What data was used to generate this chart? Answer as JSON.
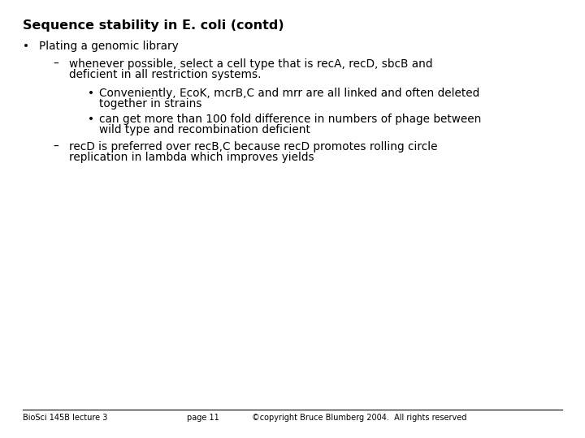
{
  "title": "Sequence stability in E. coli (contd)",
  "background_color": "#ffffff",
  "text_color": "#000000",
  "footer_left": "BioSci 145B lecture 3",
  "footer_center": "page 11",
  "footer_right": "©copyright Bruce Blumberg 2004.  All rights reserved",
  "bullet1": "Plating a genomic library",
  "sub1_line1": "whenever possible, select a cell type that is recA, recD, sbcB and",
  "sub1_line2": "deficient in all restriction systems.",
  "subsub1_line1": "Conveniently, EcoK, mcrB,C and mrr are all linked and often deleted",
  "subsub1_line2": "together in strains",
  "subsub2_line1": "can get more than 100 fold difference in numbers of phage between",
  "subsub2_line2": "wild type and recombination deficient",
  "sub2_line1": "recD is preferred over recB,C because recD promotes rolling circle",
  "sub2_line2": "replication in lambda which improves yields",
  "title_fontsize": 11.5,
  "body_fontsize": 9.8,
  "footer_fontsize": 7.0
}
